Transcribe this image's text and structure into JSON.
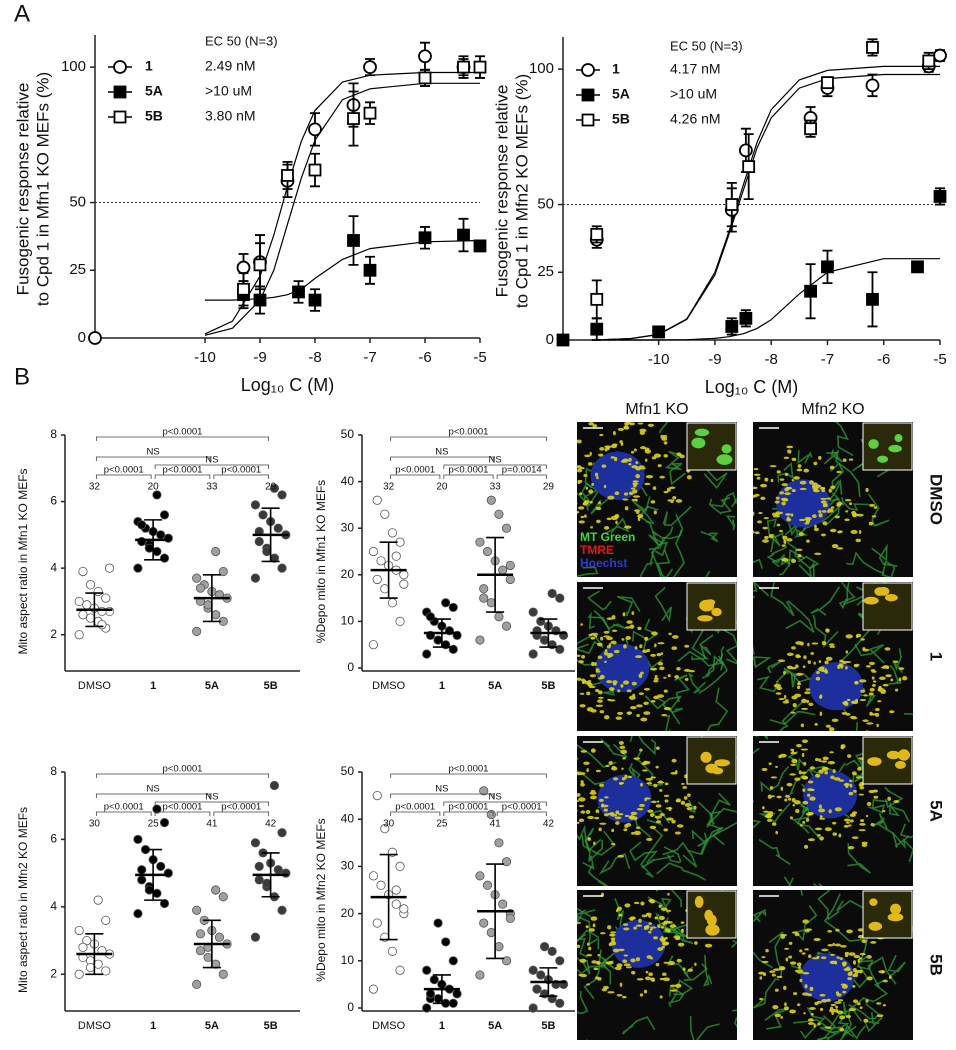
{
  "panel_labels": [
    "A",
    "B"
  ],
  "chart_data": [
    {
      "type": "dose_response",
      "ylabel": [
        "Fusogenic response relative",
        "to Cpd 1 in Mfn1 KO MEFs (%)"
      ],
      "xlabel": "Log₁₀ C (M)",
      "xlim": [
        -12,
        -5
      ],
      "xticks": [
        -10,
        -9,
        -8,
        -7,
        -6,
        -5
      ],
      "ylim": [
        0,
        110
      ],
      "yticks": [
        0,
        25,
        50,
        100
      ],
      "reference_line": 50,
      "legend_title": "EC 50 (N=3)",
      "fit_x": [
        -10,
        -9.5,
        -9,
        -8.75,
        -8.5,
        -8.25,
        -8,
        -7.5,
        -7,
        -6,
        -5
      ],
      "series": [
        {
          "name": "1",
          "ec50_label": "2.49 nM",
          "marker": "open-circle",
          "color": "#000000",
          "x": [
            -12,
            -9.3,
            -9,
            -8.5,
            -8,
            -7.3,
            -7,
            -6,
            -5.3
          ],
          "values": [
            0,
            26,
            28,
            58,
            77,
            86,
            100,
            104,
            100
          ],
          "errors": [
            0,
            5,
            10,
            6,
            6,
            8,
            3,
            5,
            3
          ],
          "fit": [
            1.5,
            6.2,
            22.8,
            38,
            56,
            72.6,
            84,
            94.5,
            97,
            98,
            98
          ]
        },
        {
          "name": "5A",
          "ec50_label": ">10 uM",
          "marker": "filled-square",
          "color": "#000000",
          "x": [
            -9.3,
            -9,
            -8.3,
            -8,
            -7.3,
            -7,
            -6,
            -5.3,
            -5
          ],
          "values": [
            16,
            14,
            17,
            14,
            36,
            25,
            37,
            38,
            34
          ],
          "errors": [
            5,
            5,
            4,
            4,
            9,
            5,
            4,
            6,
            2
          ],
          "fit": [
            14,
            14,
            14.5,
            15,
            16,
            18,
            22,
            29,
            33,
            35.5,
            36
          ]
        },
        {
          "name": "5B",
          "ec50_label": "3.80 nM",
          "marker": "open-square",
          "color": "#000000",
          "x": [
            -9.3,
            -9,
            -8.5,
            -8,
            -7.3,
            -7,
            -6,
            -5.3,
            -5
          ],
          "values": [
            18,
            27,
            60,
            62,
            81,
            83,
            96,
            100,
            100
          ],
          "errors": [
            6,
            8,
            5,
            6,
            10,
            4,
            3,
            4,
            4
          ],
          "fit": [
            1,
            3.6,
            14,
            25,
            42,
            59,
            73,
            88,
            92,
            94,
            94
          ]
        }
      ]
    },
    {
      "type": "dose_response",
      "ylabel": [
        "Fusogenic response relative",
        "to Cpd 1 in Mfn2 KO MEFs (%)"
      ],
      "xlabel": "Log₁₀ C (M)",
      "xlim": [
        -11.7,
        -5
      ],
      "xticks": [
        -10,
        -9,
        -8,
        -7,
        -6,
        -5
      ],
      "ylim": [
        0,
        110
      ],
      "yticks": [
        0,
        25,
        50,
        100
      ],
      "reference_line": 50,
      "legend_title": "EC 50 (N=3)",
      "fit_x": [
        -11,
        -10.5,
        -10,
        -9.5,
        -9,
        -8.75,
        -8.5,
        -8.25,
        -8,
        -7.5,
        -7,
        -6,
        -5
      ],
      "series": [
        {
          "name": "1",
          "ec50_label": "4.17 nM",
          "marker": "open-circle",
          "color": "#000000",
          "x": [
            -11.1,
            -8.7,
            -8.45,
            -7.3,
            -7.0,
            -6.2,
            -5.2,
            -5.0
          ],
          "values": [
            37,
            48,
            70,
            82,
            93,
            94,
            101,
            105
          ],
          "errors": [
            3,
            8,
            8,
            4,
            3,
            4,
            2,
            2
          ],
          "fit": [
            0.1,
            0.5,
            2.1,
            7.8,
            25,
            40,
            57,
            73,
            85,
            96,
            99.5,
            101,
            101
          ]
        },
        {
          "name": "5A",
          "ec50_label": ">10 uM",
          "marker": "filled-square",
          "color": "#000000",
          "x": [
            -11.7,
            -11.1,
            -10.0,
            -8.7,
            -8.45,
            -7.3,
            -7.0,
            -6.2,
            -5.4,
            -5.0
          ],
          "values": [
            0,
            4,
            3,
            5,
            8,
            18,
            27,
            15,
            27,
            53
          ],
          "errors": [
            0,
            4,
            2,
            3,
            3,
            10,
            6,
            10,
            0,
            3
          ],
          "fit": [
            0,
            0,
            0,
            0.1,
            0.6,
            1.2,
            2.3,
            4.3,
            7.5,
            17,
            25,
            30,
            30
          ]
        },
        {
          "name": "5B",
          "ec50_label": "4.26 nM",
          "marker": "open-square",
          "color": "#000000",
          "x": [
            -11.1,
            -11.1,
            -8.7,
            -8.4,
            -7.3,
            -7.0,
            -6.2,
            -5.2
          ],
          "values": [
            39,
            15,
            50,
            64,
            78,
            95,
            108,
            103
          ],
          "errors": [
            3,
            7,
            8,
            12,
            3,
            2,
            3,
            3
          ],
          "fit": [
            0.1,
            0.5,
            2,
            7.6,
            24,
            39,
            55,
            71,
            82,
            93,
            96.5,
            98,
            98
          ]
        }
      ]
    },
    {
      "type": "dot",
      "ylabel": "Mito aspect ratio in Mfn1 KO MEFs",
      "categories": [
        "DMSO",
        "1",
        "5A",
        "5B"
      ],
      "ylim": [
        1,
        8
      ],
      "yticks": [
        2,
        4,
        6,
        8
      ],
      "groups": [
        {
          "color": "#ffffff",
          "n": 32,
          "mean": 2.75,
          "sd": 0.5,
          "values": [
            2.0,
            2.2,
            2.4,
            2.5,
            2.6,
            2.7,
            2.7,
            2.8,
            2.9,
            3.0,
            3.1,
            3.3,
            3.5,
            3.9,
            4.0,
            2.3
          ]
        },
        {
          "color": "#000000",
          "n": 20,
          "mean": 4.85,
          "sd": 0.6,
          "values": [
            4.0,
            4.3,
            4.5,
            4.7,
            4.8,
            4.9,
            5.0,
            5.1,
            5.2,
            5.4,
            5.6,
            6.2,
            4.6,
            5.3
          ]
        },
        {
          "color": "#a0a0a0",
          "n": 33,
          "mean": 3.1,
          "sd": 0.7,
          "values": [
            2.1,
            2.4,
            2.6,
            2.8,
            3.0,
            3.1,
            3.2,
            3.3,
            3.5,
            3.7,
            3.9,
            4.5,
            2.9,
            3.4
          ]
        },
        {
          "color": "#3a3a3a",
          "n": 29,
          "mean": 5.0,
          "sd": 0.8,
          "values": [
            3.7,
            4.0,
            4.3,
            4.6,
            4.8,
            5.0,
            5.2,
            5.4,
            5.6,
            5.9,
            6.2,
            6.4,
            4.5,
            5.1
          ]
        }
      ],
      "comparisons": [
        {
          "span": [
            "DMSO",
            "5B"
          ],
          "label": "p<0.0001"
        },
        {
          "span": [
            "DMSO",
            "5A"
          ],
          "label": "NS"
        },
        {
          "span": [
            "1",
            "5B"
          ],
          "label": "NS"
        },
        {
          "span": [
            "DMSO",
            "1"
          ],
          "label": "p<0.0001"
        },
        {
          "span": [
            "1",
            "5A"
          ],
          "label": "p<0.0001"
        },
        {
          "span": [
            "5A",
            "5B"
          ],
          "label": "p<0.0001"
        }
      ]
    },
    {
      "type": "dot",
      "ylabel": "%Depo mito in Mfn1 KO MEFs",
      "categories": [
        "DMSO",
        "1",
        "5A",
        "5B"
      ],
      "ylim": [
        0,
        50
      ],
      "yticks": [
        0,
        10,
        20,
        30,
        40,
        50
      ],
      "groups": [
        {
          "color": "#ffffff",
          "n": 32,
          "mean": 21,
          "sd": 6,
          "values": [
            5,
            10,
            14,
            17,
            19,
            20,
            21,
            22,
            23,
            25,
            27,
            29,
            33,
            36,
            18,
            24
          ]
        },
        {
          "color": "#000000",
          "n": 20,
          "mean": 7.5,
          "sd": 3,
          "values": [
            3,
            4,
            5,
            6,
            7,
            7,
            8,
            9,
            10,
            12,
            13,
            14,
            6,
            11
          ]
        },
        {
          "color": "#a0a0a0",
          "n": 33,
          "mean": 20,
          "sd": 8,
          "values": [
            6,
            9,
            11,
            14,
            17,
            19,
            21,
            23,
            25,
            27,
            30,
            33,
            36,
            15,
            22
          ]
        },
        {
          "color": "#3a3a3a",
          "n": 29,
          "mean": 7.5,
          "sd": 3,
          "values": [
            3,
            4,
            5,
            6,
            7,
            7,
            8,
            9,
            10,
            12,
            15,
            16,
            6,
            8
          ]
        }
      ],
      "comparisons": [
        {
          "span": [
            "DMSO",
            "5B"
          ],
          "label": "p<0.0001"
        },
        {
          "span": [
            "DMSO",
            "5A"
          ],
          "label": "NS"
        },
        {
          "span": [
            "1",
            "5B"
          ],
          "label": "NS"
        },
        {
          "span": [
            "DMSO",
            "1"
          ],
          "label": "p<0.0001"
        },
        {
          "span": [
            "1",
            "5A"
          ],
          "label": "p<0.0001"
        },
        {
          "span": [
            "5A",
            "5B"
          ],
          "label": "p=0.0014"
        }
      ]
    },
    {
      "type": "dot",
      "ylabel": "Mito aspect ratio in Mfn2 KO MEFs",
      "categories": [
        "DMSO",
        "1",
        "5A",
        "5B"
      ],
      "ylim": [
        1,
        8
      ],
      "yticks": [
        2,
        4,
        6,
        8
      ],
      "groups": [
        {
          "color": "#ffffff",
          "n": 30,
          "mean": 2.6,
          "sd": 0.6,
          "values": [
            2.0,
            2.1,
            2.3,
            2.4,
            2.5,
            2.6,
            2.7,
            2.9,
            3.0,
            3.3,
            3.6,
            4.2,
            2.2,
            2.8
          ]
        },
        {
          "color": "#000000",
          "n": 25,
          "mean": 4.95,
          "sd": 0.75,
          "values": [
            3.8,
            4.1,
            4.4,
            4.6,
            4.8,
            5.0,
            5.2,
            5.4,
            5.7,
            6.0,
            6.5,
            6.9,
            4.5,
            5.1
          ]
        },
        {
          "color": "#a0a0a0",
          "n": 41,
          "mean": 2.9,
          "sd": 0.7,
          "values": [
            1.7,
            2.0,
            2.3,
            2.5,
            2.7,
            2.9,
            3.1,
            3.3,
            3.6,
            3.9,
            4.3,
            4.5,
            2.8,
            3.2
          ]
        },
        {
          "color": "#3a3a3a",
          "n": 42,
          "mean": 4.95,
          "sd": 0.65,
          "values": [
            3.1,
            3.9,
            4.3,
            4.6,
            4.8,
            5.0,
            5.1,
            5.3,
            5.6,
            5.9,
            6.2,
            7.6,
            4.7,
            5.2
          ]
        }
      ],
      "comparisons": [
        {
          "span": [
            "DMSO",
            "5B"
          ],
          "label": "p<0.0001"
        },
        {
          "span": [
            "DMSO",
            "5A"
          ],
          "label": "NS"
        },
        {
          "span": [
            "1",
            "5B"
          ],
          "label": "NS"
        },
        {
          "span": [
            "DMSO",
            "1"
          ],
          "label": "p<0.0001"
        },
        {
          "span": [
            "1",
            "5A"
          ],
          "label": "p<0.0001"
        },
        {
          "span": [
            "5A",
            "5B"
          ],
          "label": "p<0.0001"
        }
      ]
    },
    {
      "type": "dot",
      "ylabel": "%Depo mito in Mfn2 KO MEFs",
      "categories": [
        "DMSO",
        "1",
        "5A",
        "5B"
      ],
      "ylim": [
        0,
        50
      ],
      "yticks": [
        0,
        10,
        20,
        30,
        40,
        50
      ],
      "groups": [
        {
          "color": "#ffffff",
          "n": 30,
          "mean": 23.5,
          "sd": 9,
          "values": [
            4,
            8,
            12,
            15,
            18,
            20,
            22,
            24,
            26,
            28,
            30,
            33,
            38,
            45,
            21,
            25
          ]
        },
        {
          "color": "#000000",
          "n": 25,
          "mean": 4,
          "sd": 3,
          "values": [
            0,
            1,
            1,
            2,
            2,
            3,
            4,
            5,
            6,
            8,
            10,
            14,
            18,
            3
          ]
        },
        {
          "color": "#a0a0a0",
          "n": 41,
          "mean": 20.5,
          "sd": 10,
          "values": [
            7,
            10,
            13,
            16,
            18,
            20,
            22,
            24,
            26,
            28,
            31,
            35,
            41,
            46,
            19
          ]
        },
        {
          "color": "#3a3a3a",
          "n": 42,
          "mean": 5.5,
          "sd": 3,
          "values": [
            0,
            1,
            2,
            3,
            4,
            5,
            5,
            6,
            7,
            8,
            10,
            12,
            13,
            4
          ]
        }
      ],
      "comparisons": [
        {
          "span": [
            "DMSO",
            "5B"
          ],
          "label": "p<0.0001"
        },
        {
          "span": [
            "DMSO",
            "5A"
          ],
          "label": "NS"
        },
        {
          "span": [
            "1",
            "5B"
          ],
          "label": "NS"
        },
        {
          "span": [
            "DMSO",
            "1"
          ],
          "label": "p<0.0001"
        },
        {
          "span": [
            "1",
            "5A"
          ],
          "label": "p<0.0001"
        },
        {
          "span": [
            "5A",
            "5B"
          ],
          "label": "p<0.0001"
        }
      ]
    }
  ],
  "micrographs": {
    "columns": [
      "Mfn1 KO",
      "Mfn2 KO"
    ],
    "rows": [
      "DMSO",
      "1",
      "5A",
      "5B"
    ],
    "channels": [
      "MT Green",
      "TMRE",
      "Hoechst"
    ]
  }
}
